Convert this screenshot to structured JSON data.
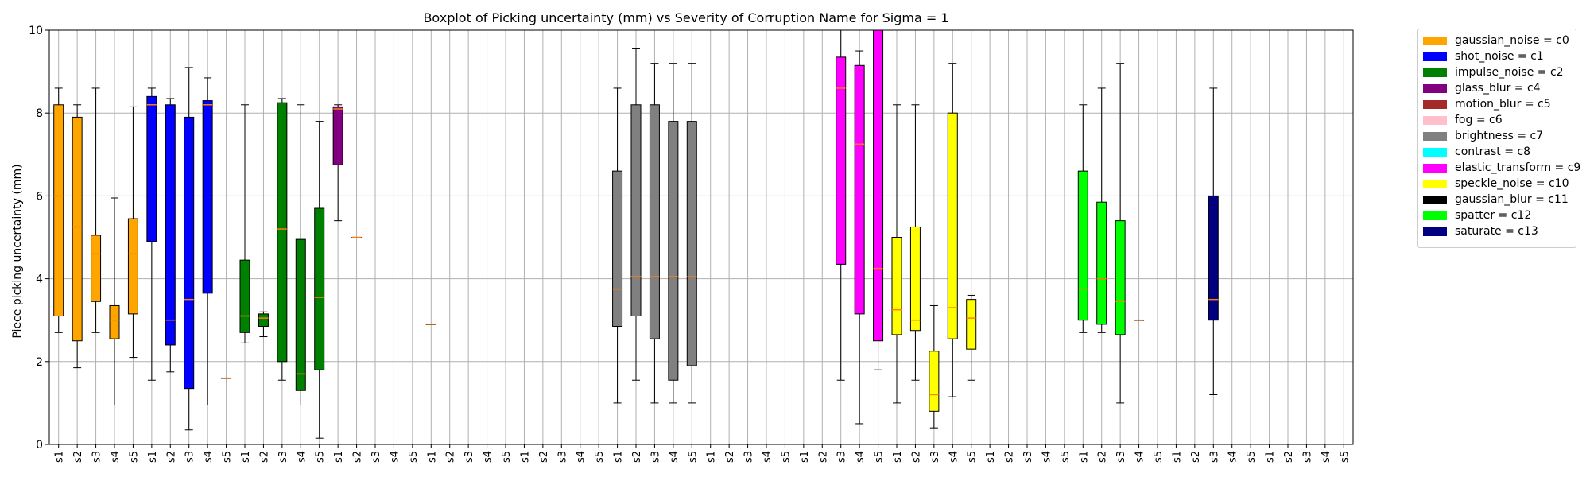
{
  "chart_data": {
    "type": "boxplot",
    "title": "Boxplot of Picking uncertainty (mm) vs Severity of Corruption Name for Sigma = 1",
    "ylabel": "Piece picking uncertainty (mm)",
    "xlabel": "",
    "ylim": [
      0,
      10
    ],
    "yticks": [
      0,
      2,
      4,
      6,
      8,
      10
    ],
    "grid": true,
    "legend_position": "outside-top-right",
    "categories": [
      "s1",
      "s2",
      "s3",
      "s4",
      "s5",
      "s1",
      "s2",
      "s3",
      "s4",
      "s5",
      "s1",
      "s2",
      "s3",
      "s4",
      "s5",
      "s1",
      "s2",
      "s3",
      "s4",
      "s5",
      "s1",
      "s2",
      "s3",
      "s4",
      "s5",
      "s1",
      "s2",
      "s3",
      "s4",
      "s5",
      "s1",
      "s2",
      "s3",
      "s4",
      "s5",
      "s1",
      "s2",
      "s3",
      "s4",
      "s5",
      "s1",
      "s2",
      "s3",
      "s4",
      "s5",
      "s1",
      "s2",
      "s3",
      "s4",
      "s5",
      "s1",
      "s2",
      "s3",
      "s4",
      "s5",
      "s1",
      "s2",
      "s3",
      "s4",
      "s5",
      "s1",
      "s2",
      "s3",
      "s4",
      "s5",
      "s1",
      "s2",
      "s3",
      "s4",
      "s5"
    ],
    "groups": [
      {
        "id": "c0",
        "color": "#ffa500",
        "boxes": [
          {
            "level": "s1",
            "whislo": 2.7,
            "q1": 3.1,
            "med": 6.0,
            "q3": 8.2,
            "whishi": 8.6
          },
          {
            "level": "s2",
            "whislo": 1.85,
            "q1": 2.5,
            "med": 5.25,
            "q3": 7.9,
            "whishi": 8.2
          },
          {
            "level": "s3",
            "whislo": 2.7,
            "q1": 3.45,
            "med": 4.6,
            "q3": 5.05,
            "whishi": 8.6
          },
          {
            "level": "s4",
            "whislo": 0.95,
            "q1": 2.55,
            "med": 3.0,
            "q3": 3.35,
            "whishi": 5.95
          },
          {
            "level": "s5",
            "whislo": 2.1,
            "q1": 3.15,
            "med": 4.6,
            "q3": 5.45,
            "whishi": 8.15
          }
        ]
      },
      {
        "id": "c1",
        "color": "#0000ff",
        "boxes": [
          {
            "level": "s1",
            "whislo": 1.55,
            "q1": 4.9,
            "med": 8.2,
            "q3": 8.4,
            "whishi": 8.6
          },
          {
            "level": "s2",
            "whislo": 1.75,
            "q1": 2.4,
            "med": 3.0,
            "q3": 8.2,
            "whishi": 8.35
          },
          {
            "level": "s3",
            "whislo": 0.35,
            "q1": 1.35,
            "med": 3.5,
            "q3": 7.9,
            "whishi": 9.1
          },
          {
            "level": "s4",
            "whislo": 0.95,
            "q1": 3.65,
            "med": 8.2,
            "q3": 8.3,
            "whishi": 8.85
          },
          {
            "level": "s5",
            "whislo": 1.6,
            "q1": 1.6,
            "med": 1.6,
            "q3": 1.6,
            "whishi": 1.6
          }
        ]
      },
      {
        "id": "c2",
        "color": "#008000",
        "boxes": [
          {
            "level": "s1",
            "whislo": 2.45,
            "q1": 2.7,
            "med": 3.1,
            "q3": 4.45,
            "whishi": 8.2
          },
          {
            "level": "s2",
            "whislo": 2.6,
            "q1": 2.85,
            "med": 3.05,
            "q3": 3.15,
            "whishi": 3.2
          },
          {
            "level": "s3",
            "whislo": 1.55,
            "q1": 2.0,
            "med": 5.2,
            "q3": 8.25,
            "whishi": 8.35
          },
          {
            "level": "s4",
            "whislo": 0.95,
            "q1": 1.3,
            "med": 1.7,
            "q3": 4.95,
            "whishi": 8.2
          },
          {
            "level": "s5",
            "whislo": 0.15,
            "q1": 1.8,
            "med": 3.55,
            "q3": 5.7,
            "whishi": 7.8
          }
        ]
      },
      {
        "id": "c4",
        "color": "#800080",
        "boxes": [
          {
            "level": "s1",
            "whislo": 5.4,
            "q1": 6.75,
            "med": 8.1,
            "q3": 8.15,
            "whishi": 8.2
          },
          {
            "level": "s2",
            "whislo": 5.0,
            "q1": 5.0,
            "med": 5.0,
            "q3": 5.0,
            "whishi": 5.0
          }
        ]
      },
      {
        "id": "c5",
        "color": "#a52a2a",
        "boxes": [
          {
            "level": "s1",
            "whislo": 2.9,
            "q1": 2.9,
            "med": 2.9,
            "q3": 2.9,
            "whishi": 2.9
          }
        ]
      },
      {
        "id": "c7",
        "color": "#808080",
        "boxes": [
          {
            "level": "s1",
            "whislo": 1.0,
            "q1": 2.85,
            "med": 3.75,
            "q3": 6.6,
            "whishi": 8.6
          },
          {
            "level": "s2",
            "whislo": 1.55,
            "q1": 3.1,
            "med": 4.05,
            "q3": 8.2,
            "whishi": 9.55
          },
          {
            "level": "s3",
            "whislo": 1.0,
            "q1": 2.55,
            "med": 4.05,
            "q3": 8.2,
            "whishi": 9.2
          },
          {
            "level": "s4",
            "whislo": 1.0,
            "q1": 1.55,
            "med": 4.05,
            "q3": 7.8,
            "whishi": 9.2
          },
          {
            "level": "s5",
            "whislo": 1.0,
            "q1": 1.9,
            "med": 4.05,
            "q3": 7.8,
            "whishi": 9.2
          }
        ]
      },
      {
        "id": "c9",
        "color": "#ff00ff",
        "boxes": [
          {
            "level": "s3",
            "whislo": 1.55,
            "q1": 4.35,
            "med": 8.6,
            "q3": 9.35,
            "whishi": 10.0
          },
          {
            "level": "s4",
            "whislo": 0.5,
            "q1": 3.15,
            "med": 7.25,
            "q3": 9.15,
            "whishi": 9.5
          },
          {
            "level": "s5",
            "whislo": 1.8,
            "q1": 2.5,
            "med": 4.25,
            "q3": 10.0,
            "whishi": 10.0
          }
        ]
      },
      {
        "id": "c10",
        "color": "#ffff00",
        "boxes": [
          {
            "level": "s1",
            "whislo": 1.0,
            "q1": 2.65,
            "med": 3.25,
            "q3": 5.0,
            "whishi": 8.2
          },
          {
            "level": "s2",
            "whislo": 1.55,
            "q1": 2.75,
            "med": 3.0,
            "q3": 5.25,
            "whishi": 8.2
          },
          {
            "level": "s3",
            "whislo": 0.4,
            "q1": 0.8,
            "med": 1.2,
            "q3": 2.25,
            "whishi": 3.35
          },
          {
            "level": "s4",
            "whislo": 1.15,
            "q1": 2.55,
            "med": 3.3,
            "q3": 8.0,
            "whishi": 9.2
          },
          {
            "level": "s5",
            "whislo": 1.55,
            "q1": 2.3,
            "med": 3.05,
            "q3": 3.5,
            "whishi": 3.6
          }
        ]
      },
      {
        "id": "c12",
        "color": "#00ff00",
        "boxes": [
          {
            "level": "s1",
            "whislo": 2.7,
            "q1": 3.0,
            "med": 3.75,
            "q3": 6.6,
            "whishi": 8.2
          },
          {
            "level": "s2",
            "whislo": 2.7,
            "q1": 2.9,
            "med": 4.0,
            "q3": 5.85,
            "whishi": 8.6
          },
          {
            "level": "s3",
            "whislo": 1.0,
            "q1": 2.65,
            "med": 3.45,
            "q3": 5.4,
            "whishi": 9.2
          },
          {
            "level": "s4",
            "whislo": 3.0,
            "q1": 3.0,
            "med": 3.0,
            "q3": 3.0,
            "whishi": 3.0
          }
        ]
      },
      {
        "id": "c13",
        "color": "#000080",
        "boxes": [
          {
            "level": "s3",
            "whislo": 1.2,
            "q1": 3.0,
            "med": 3.5,
            "q3": 6.0,
            "whishi": 8.6
          }
        ]
      }
    ],
    "legend": [
      {
        "label": "gaussian_noise = c0",
        "color": "#ffa500"
      },
      {
        "label": "shot_noise = c1",
        "color": "#0000ff"
      },
      {
        "label": "impulse_noise = c2",
        "color": "#008000"
      },
      {
        "label": "glass_blur = c4",
        "color": "#800080"
      },
      {
        "label": "motion_blur = c5",
        "color": "#a52a2a"
      },
      {
        "label": "fog = c6",
        "color": "#ffc0cb"
      },
      {
        "label": "brightness = c7",
        "color": "#808080"
      },
      {
        "label": "contrast = c8",
        "color": "#00ffff"
      },
      {
        "label": "elastic_transform = c9",
        "color": "#ff00ff"
      },
      {
        "label": "speckle_noise = c10",
        "color": "#ffff00"
      },
      {
        "label": "gaussian_blur = c11",
        "color": "#000000"
      },
      {
        "label": "spatter = c12",
        "color": "#00ff00"
      },
      {
        "label": "saturate = c13",
        "color": "#000080"
      }
    ],
    "median_color": "#ff7f0e"
  }
}
